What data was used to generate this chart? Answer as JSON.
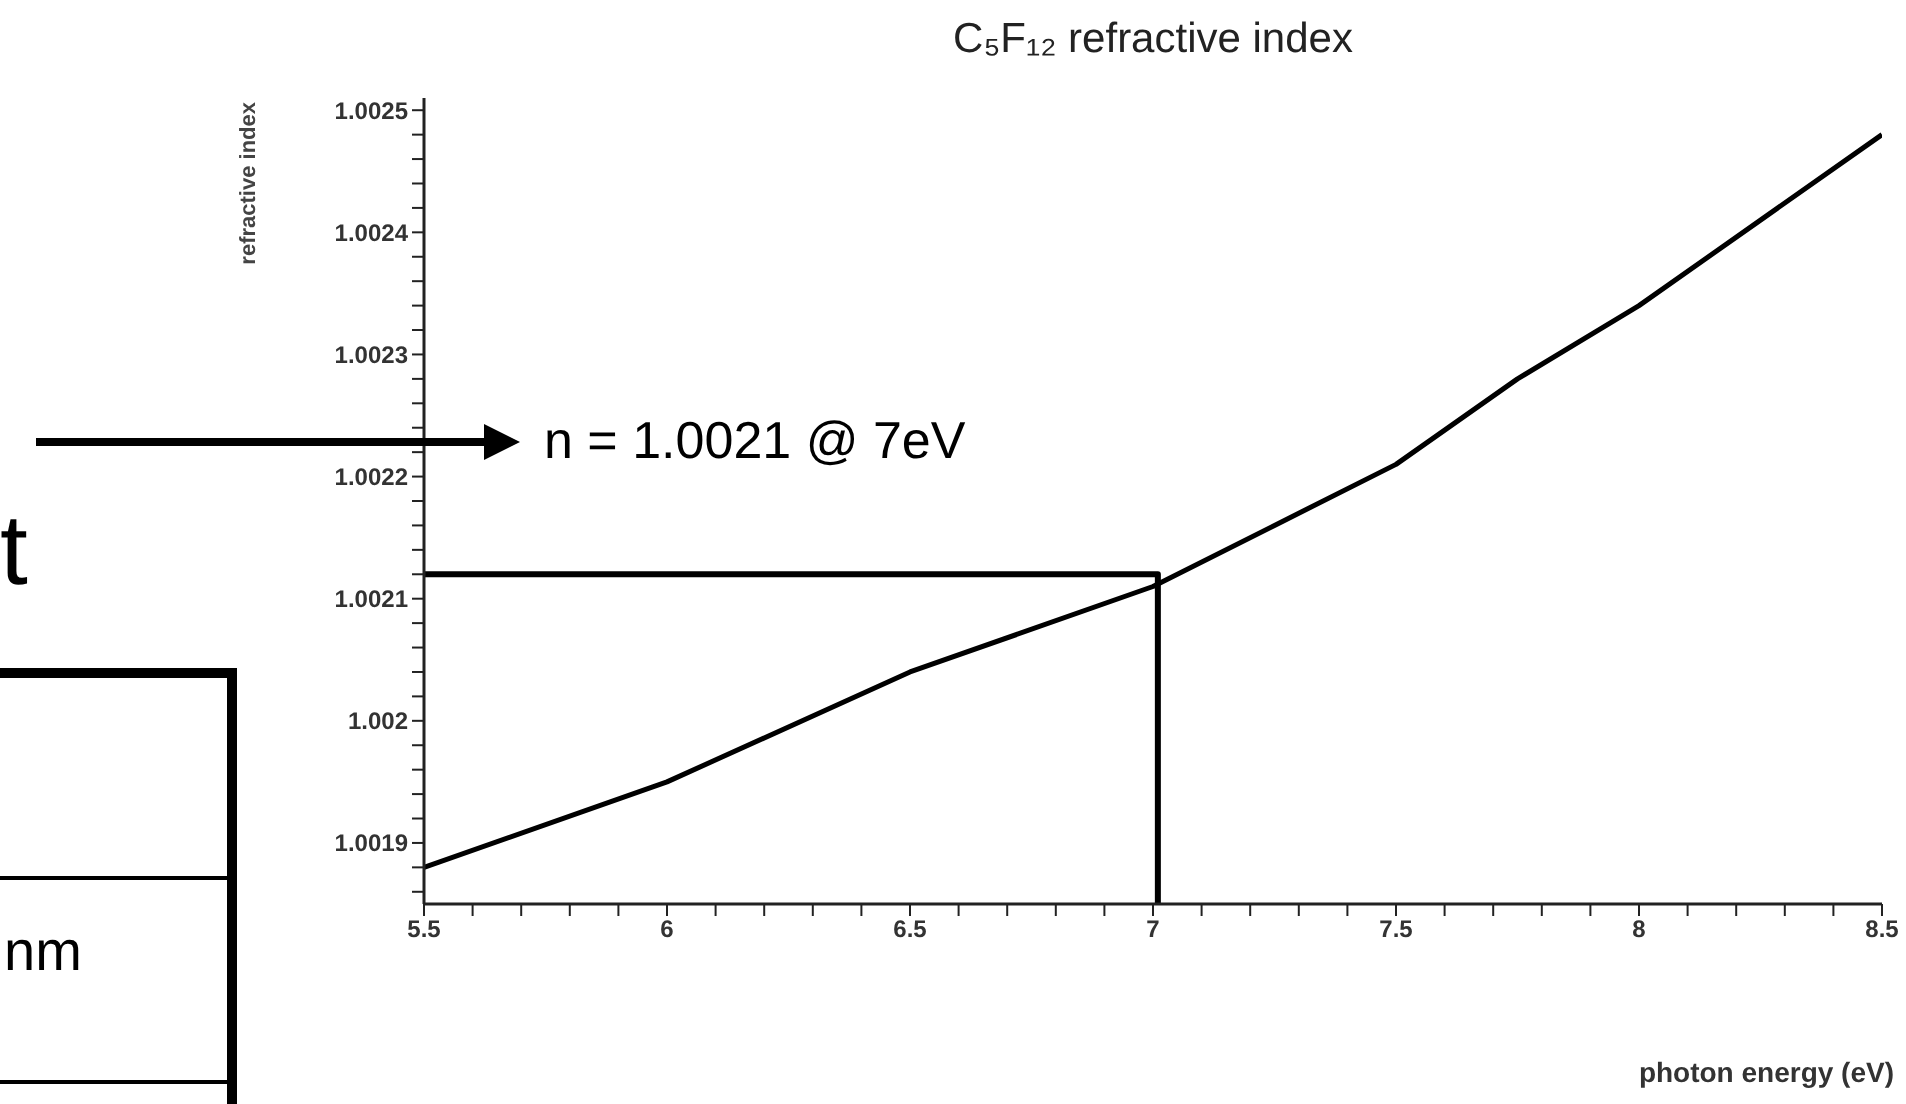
{
  "chart_data": {
    "type": "line",
    "title": "C₅F₁₂ refractive index",
    "xlabel": "photon energy (eV)",
    "ylabel": "refractive index",
    "xlim": [
      5.5,
      8.5
    ],
    "ylim": [
      1.00185,
      1.00251
    ],
    "xticks": [
      5.5,
      {
        "value": 5.6,
        "label": null
      },
      {
        "value": 5.7,
        "label": null
      },
      {
        "value": 5.8,
        "label": null
      },
      {
        "value": 5.9,
        "label": null
      },
      6,
      {
        "value": 6.1,
        "label": null
      },
      {
        "value": 6.2,
        "label": null
      },
      {
        "value": 6.3,
        "label": null
      },
      {
        "value": 6.4,
        "label": null
      },
      6.5,
      {
        "value": 6.6,
        "label": null
      },
      {
        "value": 6.7,
        "label": null
      },
      {
        "value": 6.8,
        "label": null
      },
      {
        "value": 6.9,
        "label": null
      },
      7,
      {
        "value": 7.1,
        "label": null
      },
      {
        "value": 7.2,
        "label": null
      },
      {
        "value": 7.3,
        "label": null
      },
      {
        "value": 7.4,
        "label": null
      },
      7.5,
      {
        "value": 7.6,
        "label": null
      },
      {
        "value": 7.7,
        "label": null
      },
      {
        "value": 7.8,
        "label": null
      },
      {
        "value": 7.9,
        "label": null
      },
      8,
      {
        "value": 8.1,
        "label": null
      },
      {
        "value": 8.2,
        "label": null
      },
      {
        "value": 8.3,
        "label": null
      },
      {
        "value": 8.4,
        "label": null
      },
      8.5
    ],
    "yticks": [
      {
        "value": 1.00186,
        "label": null
      },
      {
        "value": 1.00188,
        "label": null
      },
      1.0019,
      {
        "value": 1.00192,
        "label": null
      },
      {
        "value": 1.00194,
        "label": null
      },
      {
        "value": 1.00196,
        "label": null
      },
      {
        "value": 1.00198,
        "label": null
      },
      1.002,
      {
        "value": 1.00202,
        "label": null
      },
      {
        "value": 1.00204,
        "label": null
      },
      {
        "value": 1.00206,
        "label": null
      },
      {
        "value": 1.00208,
        "label": null
      },
      1.0021,
      {
        "value": 1.00212,
        "label": null
      },
      {
        "value": 1.00214,
        "label": null
      },
      {
        "value": 1.00216,
        "label": null
      },
      {
        "value": 1.00218,
        "label": null
      },
      1.0022,
      {
        "value": 1.00222,
        "label": null
      },
      {
        "value": 1.00224,
        "label": null
      },
      {
        "value": 1.00226,
        "label": null
      },
      {
        "value": 1.00228,
        "label": null
      },
      1.0023,
      {
        "value": 1.00232,
        "label": null
      },
      {
        "value": 1.00234,
        "label": null
      },
      {
        "value": 1.00236,
        "label": null
      },
      {
        "value": 1.00238,
        "label": null
      },
      1.0024,
      {
        "value": 1.00242,
        "label": null
      },
      {
        "value": 1.00244,
        "label": null
      },
      {
        "value": 1.00246,
        "label": null
      },
      {
        "value": 1.00248,
        "label": null
      },
      1.0025
    ],
    "marker": "none",
    "line_style": "solid",
    "series": [
      {
        "color": "#000000",
        "x": [
          5.5,
          6,
          6.5,
          7,
          7.25,
          7.5,
          7.75,
          8,
          8.25,
          8.5
        ],
        "values": [
          1.00188,
          1.00195,
          1.00204,
          1.00211,
          1.00216,
          1.00221,
          1.00228,
          1.00234,
          1.00241,
          1.00248
        ]
      },
      {
        "color": "#000000",
        "x": [
          5.5,
          7.01,
          7.01
        ],
        "values": [
          1.00212,
          1.00212,
          1.00185
        ]
      }
    ],
    "annotations": [
      "n = 1.0021 @ 7eV",
      "t",
      "nm"
    ]
  }
}
